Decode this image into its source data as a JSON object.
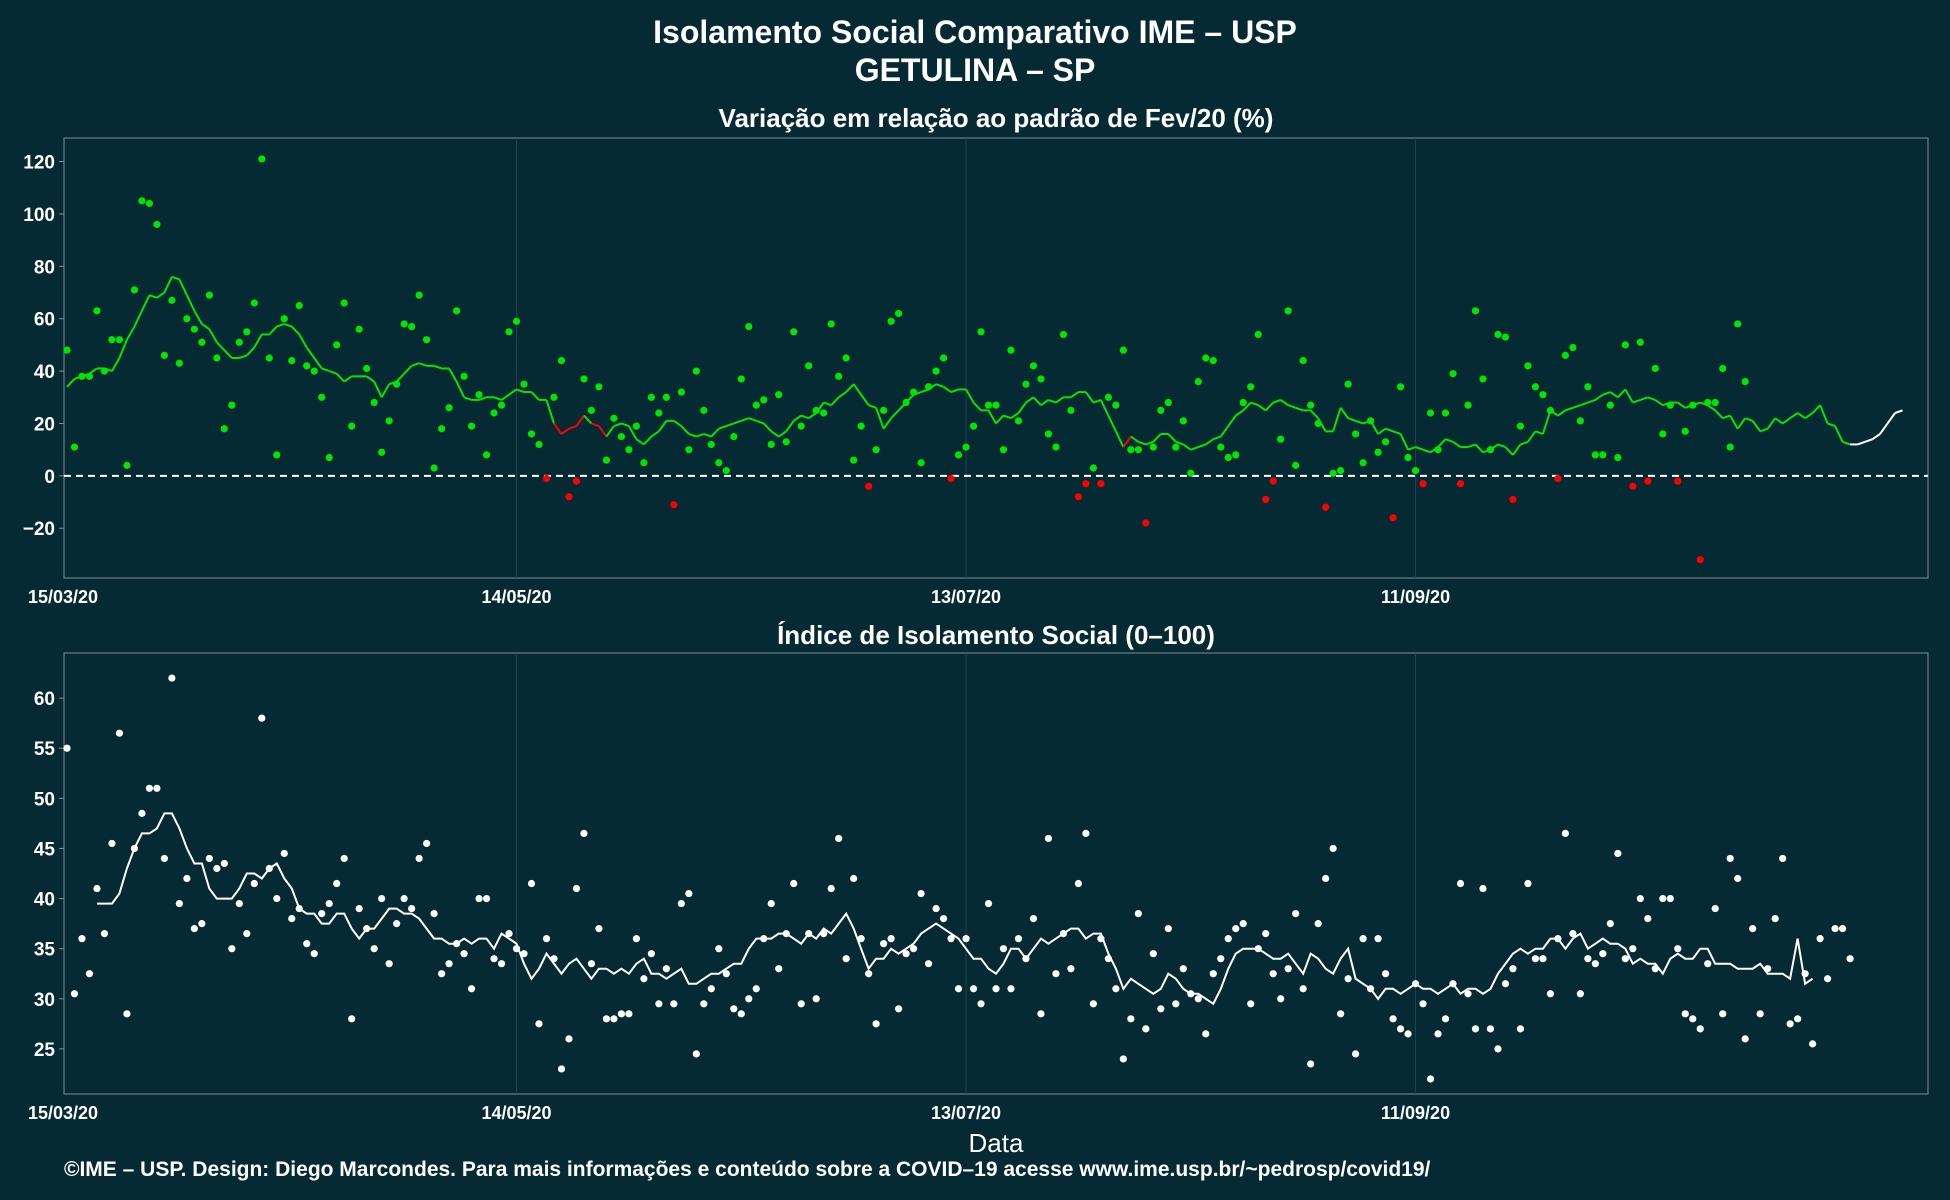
{
  "title_line1": "Isolamento Social Comparativo IME – USP",
  "title_line2": "GETULINA – SP",
  "footer": "©IME – USP. Design: Diego Marcondes. Para mais informações e conteúdo sobre a COVID–19 acesse www.ime.usp.br/~pedrosp/covid19/",
  "colors": {
    "background": "#052a33",
    "above": "#00e600",
    "below": "#ff0000",
    "index": "#ffffff"
  },
  "chart_data": [
    {
      "type": "scatter",
      "title": "Variação em relação ao padrão de Fev/20 (%)",
      "xlabel": "",
      "ylabel": "",
      "x_ticks": [
        "15/03/20",
        "14/05/20",
        "13/07/20",
        "11/09/20"
      ],
      "x_tick_days": [
        0,
        60,
        120,
        180
      ],
      "y_ticks": [
        "120",
        "100",
        "80",
        "60",
        "40",
        "20",
        "0",
        "−20"
      ],
      "y_tick_values": [
        120,
        100,
        80,
        60,
        40,
        20,
        0,
        -20
      ],
      "ylim": [
        -39,
        129
      ],
      "xlim_days": [
        0,
        248
      ],
      "reference_line": 0,
      "series": [
        {
          "role": "daily-points",
          "values": [
            48,
            11,
            38,
            38,
            63,
            40,
            52,
            52,
            4,
            71,
            105,
            104,
            96,
            46,
            67,
            43,
            60,
            56,
            51,
            69,
            45,
            18,
            27,
            51,
            55,
            66,
            121,
            45,
            8,
            60,
            44,
            65,
            42,
            40,
            30,
            7,
            50,
            66,
            19,
            56,
            41,
            28,
            9,
            21,
            35,
            58,
            57,
            69,
            52,
            3,
            18,
            26,
            63,
            38,
            19,
            31,
            8,
            24,
            27,
            55,
            59,
            35,
            16,
            12,
            -1,
            30,
            44,
            -8,
            -2,
            37,
            25,
            34,
            6,
            22,
            15,
            10,
            19,
            5,
            30,
            24,
            30,
            -11,
            32,
            10,
            40,
            25,
            12,
            5,
            2,
            15,
            37,
            57,
            27,
            29,
            12,
            31,
            13,
            55,
            19,
            42,
            25,
            24,
            58,
            38,
            45,
            6,
            19,
            -4,
            10,
            25,
            59,
            62,
            28,
            32,
            5,
            34,
            40,
            45,
            -1,
            8,
            11,
            19,
            55,
            27,
            27,
            10,
            48,
            21,
            35,
            42,
            37,
            16,
            11,
            54,
            25,
            -8,
            -3,
            3,
            -3,
            30,
            27,
            48,
            10,
            10,
            -18,
            11,
            25,
            28,
            11,
            21,
            1,
            36,
            45,
            44,
            11,
            7,
            8,
            28,
            34,
            54,
            -9,
            -2,
            14,
            63,
            4,
            44,
            27,
            20,
            -12,
            1,
            2,
            35,
            16,
            5,
            21,
            9,
            13,
            -16,
            34,
            7,
            2,
            -3,
            24,
            10,
            24,
            39,
            -3,
            27,
            63,
            37,
            10,
            54,
            53,
            -9,
            19,
            42,
            34,
            31,
            25,
            -1,
            46,
            49,
            21,
            34,
            8,
            8,
            27,
            7,
            50,
            -4,
            51,
            -2,
            41,
            16,
            27,
            -2,
            17,
            27,
            -32,
            28,
            28,
            41,
            11,
            58,
            36
          ]
        },
        {
          "role": "7-day-average",
          "values": [
            34,
            37,
            38,
            39,
            41,
            41,
            40,
            45,
            52,
            57,
            63,
            69,
            68,
            70,
            76,
            75,
            69,
            63,
            58,
            56,
            51,
            48,
            45,
            45,
            46,
            49,
            54,
            54,
            57,
            58,
            57,
            54,
            49,
            45,
            41,
            40,
            39,
            36,
            38,
            38,
            38,
            36,
            30,
            35,
            36,
            39,
            42,
            43,
            42,
            42,
            41,
            41,
            36,
            30,
            29,
            29,
            30,
            30,
            29,
            31,
            33,
            32,
            32,
            29,
            29,
            20,
            16,
            18,
            19,
            23,
            20,
            19,
            15,
            19,
            20,
            19,
            14,
            12,
            15,
            17,
            21,
            21,
            19,
            16,
            15,
            16,
            15,
            18,
            19,
            20,
            21,
            22,
            21,
            20,
            17,
            15,
            17,
            21,
            23,
            22,
            24,
            28,
            27,
            30,
            32,
            35,
            31,
            27,
            26,
            18,
            22,
            25,
            28,
            31,
            32,
            33,
            35,
            34,
            32,
            33,
            33,
            28,
            25,
            25,
            20,
            23,
            22,
            24,
            28,
            30,
            27,
            29,
            28,
            30,
            30,
            32,
            32,
            28,
            29,
            23,
            17,
            11,
            15,
            13,
            12,
            13,
            16,
            16,
            13,
            12,
            10,
            11,
            12,
            14,
            15,
            19,
            23,
            25,
            28,
            27,
            25,
            28,
            29,
            27,
            26,
            25,
            25,
            22,
            17,
            17,
            26,
            22,
            21,
            20,
            21,
            16,
            18,
            17,
            16,
            10,
            11,
            10,
            9,
            11,
            14,
            13,
            11,
            11,
            12,
            9,
            10,
            12,
            11,
            8,
            12,
            13,
            17,
            16,
            25,
            23,
            25,
            26,
            27,
            28,
            29,
            31,
            32,
            30,
            33,
            28,
            29,
            30,
            29,
            27,
            28,
            28,
            26,
            27,
            28,
            27,
            25,
            22,
            23,
            18,
            22,
            21,
            17,
            18,
            22,
            20,
            22,
            24,
            22,
            24,
            27,
            20,
            19,
            13,
            12,
            12,
            13,
            14,
            16,
            20,
            24,
            25
          ]
        }
      ]
    },
    {
      "type": "scatter",
      "title": "Índice de Isolamento Social (0–100)",
      "xlabel": "Data",
      "ylabel": "",
      "x_ticks": [
        "15/03/20",
        "14/05/20",
        "13/07/20",
        "11/09/20"
      ],
      "x_tick_days": [
        0,
        60,
        120,
        180
      ],
      "y_ticks": [
        "60",
        "55",
        "50",
        "45",
        "40",
        "35",
        "30",
        "25"
      ],
      "y_tick_values": [
        60,
        55,
        50,
        45,
        40,
        35,
        30,
        25
      ],
      "ylim": [
        20.5,
        64.5
      ],
      "xlim_days": [
        0,
        248
      ],
      "series": [
        {
          "role": "daily-points",
          "values": [
            55,
            30.5,
            36,
            32.5,
            41,
            36.5,
            45.5,
            56.5,
            28.5,
            45,
            48.5,
            51,
            51,
            44,
            62,
            39.5,
            42,
            37,
            37.5,
            44,
            43,
            43.5,
            35,
            39.5,
            36.5,
            41.5,
            58,
            43,
            40,
            44.5,
            38,
            39,
            35.5,
            34.5,
            38.5,
            39.5,
            41.5,
            44,
            28,
            39,
            37,
            35,
            40,
            33.5,
            37.5,
            40,
            39,
            44,
            45.5,
            38.5,
            32.5,
            33.5,
            35.5,
            34.5,
            31,
            40,
            40,
            34,
            33.5,
            36.5,
            35,
            34.5,
            41.5,
            27.5,
            36,
            34,
            23,
            26,
            41,
            46.5,
            33.5,
            37,
            28,
            28,
            28.5,
            28.5,
            36,
            32,
            34.5,
            29.5,
            33,
            29.5,
            39.5,
            40.5,
            24.5,
            29.5,
            31,
            35,
            32.5,
            29,
            28.5,
            30,
            31,
            36,
            39.5,
            33,
            36.5,
            41.5,
            29.5,
            36.5,
            30,
            36.5,
            41,
            46,
            34,
            42,
            36,
            32.5,
            27.5,
            35.5,
            36,
            29,
            34.5,
            35,
            40.5,
            33.5,
            39,
            38,
            36,
            31,
            36,
            31,
            29.5,
            39.5,
            31,
            35,
            31,
            36,
            34,
            38,
            28.5,
            46,
            32.5,
            36.5,
            33,
            41.5,
            46.5,
            29.5,
            36,
            34,
            31,
            24,
            28,
            38.5,
            27,
            34.5,
            29,
            37,
            29.5,
            33,
            30.5,
            30,
            26.5,
            32.5,
            34,
            36,
            37,
            37.5,
            29.5,
            35,
            36.5,
            32.5,
            30,
            33,
            38.5,
            31,
            23.5,
            37.5,
            42,
            45,
            28.5,
            32,
            24.5,
            36,
            31,
            36,
            32.5,
            28,
            27,
            26.5,
            31.5,
            29.5,
            22,
            26.5,
            28,
            31.5,
            41.5,
            30.5,
            27,
            41,
            27,
            25,
            31.5,
            33,
            27,
            41.5,
            34,
            34,
            30.5,
            36,
            46.5,
            36.5,
            30.5,
            34,
            33.5,
            34.5,
            37.5,
            44.5,
            34,
            35,
            40,
            38,
            33,
            40,
            40,
            35,
            28.5,
            28,
            27,
            33.5,
            39,
            28.5,
            44,
            42,
            26,
            37,
            28.5,
            33,
            38,
            44,
            27.5,
            28,
            32.5,
            25.5,
            36,
            32,
            37,
            37,
            34
          ]
        },
        {
          "role": "7-day-average",
          "values": [
            null,
            null,
            null,
            null,
            39.5,
            39.5,
            39.5,
            40.5,
            43,
            45,
            46.5,
            46.5,
            47,
            48.5,
            48.5,
            47,
            45,
            43.5,
            43.5,
            41,
            40,
            40,
            40,
            41,
            42.5,
            42.5,
            42,
            43,
            43.5,
            42,
            41,
            39,
            38.5,
            38.5,
            37.5,
            37.5,
            38.5,
            38.5,
            37,
            36,
            37,
            37,
            38,
            39,
            39,
            38.5,
            38.5,
            38,
            37,
            36,
            36,
            35.5,
            35.5,
            36,
            35.5,
            36,
            36,
            35,
            36.5,
            36,
            35.5,
            33.5,
            32,
            33,
            34.5,
            33.5,
            32.5,
            33.5,
            34,
            33,
            32,
            33,
            33,
            32.5,
            33,
            32.5,
            33.5,
            34,
            32.5,
            32.5,
            32,
            32.5,
            33,
            31.5,
            31.5,
            32,
            32.5,
            32.5,
            33,
            33.5,
            33.5,
            35,
            36,
            36,
            36,
            36.5,
            36.5,
            36,
            35.5,
            36.5,
            36,
            37,
            36.5,
            37.5,
            38.5,
            37,
            35,
            33,
            34,
            34,
            35,
            34.5,
            35,
            35.5,
            36.5,
            37,
            37.5,
            37,
            36.5,
            36,
            35,
            34,
            34,
            33,
            32.5,
            33.5,
            35,
            35,
            34,
            35,
            36,
            35.5,
            36,
            36.5,
            37,
            37,
            36,
            36.5,
            36.5,
            34.5,
            33,
            31,
            32,
            31.5,
            31,
            30.5,
            31,
            32.5,
            32,
            31,
            30.5,
            30.5,
            30,
            29.5,
            31,
            33,
            34.5,
            35,
            35,
            35,
            34.5,
            34,
            34,
            34.5,
            33.5,
            32.5,
            34.5,
            34,
            33,
            32.5,
            34,
            35,
            32,
            31.5,
            31,
            30,
            31,
            31,
            30.5,
            31,
            31.5,
            31,
            31,
            30.5,
            31,
            31.5,
            30.5,
            31,
            31,
            30.5,
            31,
            32.5,
            33.5,
            34.5,
            35,
            34.5,
            35,
            35,
            36,
            36,
            35,
            36,
            36.5,
            35,
            35.5,
            36,
            35.5,
            35.5,
            35,
            33.5,
            34,
            33.5,
            33.5,
            32.5,
            34,
            34.5,
            34,
            34,
            35,
            35,
            33.5,
            33.5,
            33.5,
            33,
            33,
            33,
            33.5,
            32.5,
            32.5,
            32.5,
            32,
            36,
            31.5,
            32
          ]
        }
      ]
    }
  ]
}
